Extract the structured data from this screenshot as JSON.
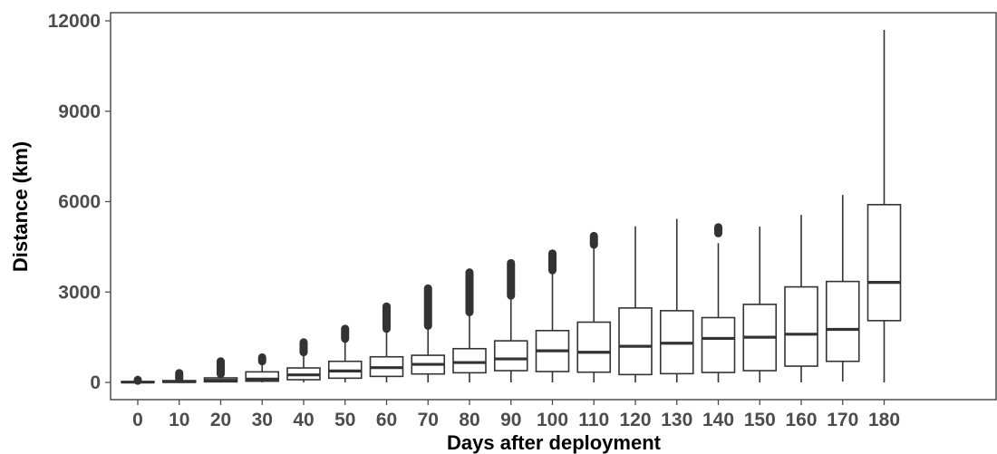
{
  "chart_data": {
    "type": "box",
    "xlabel": "Days after deployment",
    "ylabel": "Distance (km)",
    "ylim": [
      -500,
      12250
    ],
    "yticks": [
      0,
      3000,
      6000,
      9000,
      12000
    ],
    "ytick_labels": [
      "0",
      "3000",
      "6000",
      "9000",
      "12000"
    ],
    "grid": false,
    "colors": {
      "box_fill": "#ffffff",
      "line": "#333333",
      "axis": "#4d4d4d",
      "panel_border": "#333333"
    },
    "categories": [
      "0",
      "10",
      "20",
      "30",
      "40",
      "50",
      "60",
      "70",
      "80",
      "90",
      "100",
      "110",
      "120",
      "130",
      "140",
      "150",
      "160",
      "170",
      "180"
    ],
    "boxes": [
      {
        "x": "0",
        "min": 0,
        "q1": 0,
        "median": 10,
        "q3": 25,
        "max": 50,
        "outliers_from": 55,
        "outliers_to": 85
      },
      {
        "x": "10",
        "min": 0,
        "q1": 5,
        "median": 25,
        "q3": 60,
        "max": 110,
        "outliers_from": 120,
        "outliers_to": 310
      },
      {
        "x": "20",
        "min": 0,
        "q1": 20,
        "median": 70,
        "q3": 150,
        "max": 270,
        "outliers_from": 280,
        "outliers_to": 700
      },
      {
        "x": "30",
        "min": 0,
        "q1": 40,
        "median": 110,
        "q3": 350,
        "max": 680,
        "outliers_from": 700,
        "outliers_to": 830
      },
      {
        "x": "40",
        "min": 0,
        "q1": 90,
        "median": 250,
        "q3": 480,
        "max": 980,
        "outliers_from": 1000,
        "outliers_to": 1330
      },
      {
        "x": "50",
        "min": 0,
        "q1": 140,
        "median": 380,
        "q3": 700,
        "max": 1430,
        "outliers_from": 1450,
        "outliers_to": 1780
      },
      {
        "x": "60",
        "min": 0,
        "q1": 200,
        "median": 490,
        "q3": 850,
        "max": 1750,
        "outliers_from": 1780,
        "outliers_to": 2520
      },
      {
        "x": "70",
        "min": 0,
        "q1": 280,
        "median": 600,
        "q3": 900,
        "max": 1850,
        "outliers_from": 1880,
        "outliers_to": 3120
      },
      {
        "x": "80",
        "min": 0,
        "q1": 320,
        "median": 660,
        "q3": 1120,
        "max": 2300,
        "outliers_from": 2330,
        "outliers_to": 3650
      },
      {
        "x": "90",
        "min": 0,
        "q1": 390,
        "median": 780,
        "q3": 1380,
        "max": 2850,
        "outliers_from": 2880,
        "outliers_to": 3960
      },
      {
        "x": "100",
        "min": 0,
        "q1": 360,
        "median": 1050,
        "q3": 1720,
        "max": 3700,
        "outliers_from": 3720,
        "outliers_to": 4280
      },
      {
        "x": "110",
        "min": 0,
        "q1": 340,
        "median": 1000,
        "q3": 2000,
        "max": 4550,
        "outliers_from": 4570,
        "outliers_to": 4860
      },
      {
        "x": "120",
        "min": 0,
        "q1": 260,
        "median": 1200,
        "q3": 2470,
        "max": 5180
      },
      {
        "x": "130",
        "min": 0,
        "q1": 290,
        "median": 1300,
        "q3": 2380,
        "max": 5430
      },
      {
        "x": "140",
        "min": 0,
        "q1": 330,
        "median": 1460,
        "q3": 2150,
        "max": 4620,
        "outliers_from": 4950,
        "outliers_to": 5150
      },
      {
        "x": "150",
        "min": 0,
        "q1": 390,
        "median": 1500,
        "q3": 2590,
        "max": 5170
      },
      {
        "x": "160",
        "min": 0,
        "q1": 540,
        "median": 1600,
        "q3": 3170,
        "max": 5560
      },
      {
        "x": "170",
        "min": 30,
        "q1": 700,
        "median": 1760,
        "q3": 3350,
        "max": 6220
      },
      {
        "x": "180",
        "min": 0,
        "q1": 2050,
        "median": 3320,
        "q3": 5900,
        "max": 11700
      }
    ]
  }
}
